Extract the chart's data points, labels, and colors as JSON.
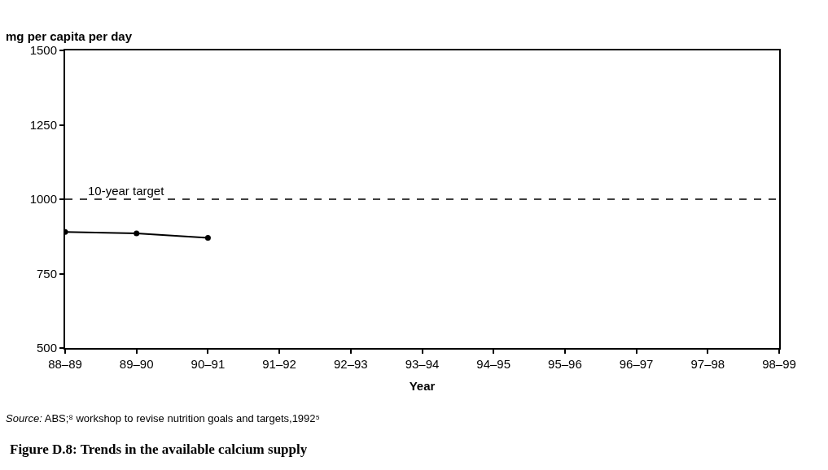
{
  "chart_data": {
    "type": "line",
    "title": "Figure D.8: Trends in the available calcium supply",
    "ylabel": "mg per capita per day",
    "xlabel": "Year",
    "categories": [
      "88–89",
      "89–90",
      "90–91",
      "91–92",
      "92–93",
      "93–94",
      "94–95",
      "95–96",
      "96–97",
      "97–98",
      "98–99"
    ],
    "series": [
      {
        "color": "#000000",
        "values": [
          890,
          885,
          870,
          null,
          null,
          null,
          null,
          null,
          null,
          null,
          null
        ]
      }
    ],
    "ylim": [
      500,
      1500
    ],
    "yticks": [
      500,
      750,
      1000,
      1250,
      1500
    ],
    "ref_lines": [
      {
        "axis": "y",
        "value": 1000,
        "label": "10-year target",
        "color": "#000000",
        "line_style": "dashed"
      }
    ],
    "annotations": [
      "*Source:* ABS;⁸ workshop to revise nutrition goals and targets,1992⁵"
    ],
    "marker": "circle",
    "line_style": "solid"
  }
}
